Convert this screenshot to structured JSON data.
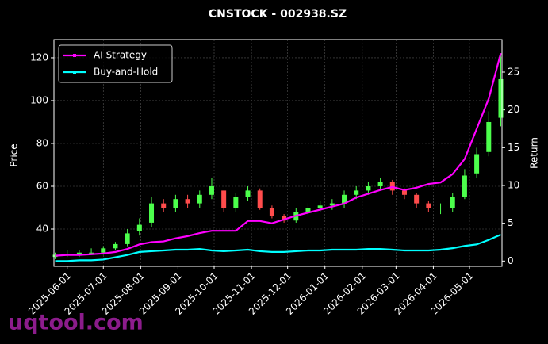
{
  "chart_data": {
    "type": "candlestick+line",
    "title": "CNSTOCK - 002938.SZ",
    "ylabel": "Price",
    "y2label": "Return",
    "xlim": [
      "2025-05-21",
      "2026-05-28"
    ],
    "xticks": [
      "2025-06-01",
      "2025-07-01",
      "2025-08-01",
      "2025-09-01",
      "2025-10-01",
      "2025-11-01",
      "2025-12-01",
      "2026-01-01",
      "2026-02-01",
      "2026-03-01",
      "2026-04-01",
      "2026-05-01"
    ],
    "ylim": [
      22.6,
      128.5
    ],
    "yticks": [
      40,
      60,
      80,
      100,
      120
    ],
    "y2lim": [
      -0.7,
      29.3
    ],
    "y2ticks": [
      0,
      5,
      10,
      15,
      20,
      25
    ],
    "grid": true,
    "legend": "upper left",
    "up_color": "#4cff4c",
    "down_color": "#ff4c4c",
    "x": [
      "2025-05-22",
      "2025-06-01",
      "2025-06-11",
      "2025-06-21",
      "2025-07-01",
      "2025-07-11",
      "2025-07-21",
      "2025-07-31",
      "2025-08-10",
      "2025-08-20",
      "2025-08-30",
      "2025-09-09",
      "2025-09-19",
      "2025-09-29",
      "2025-10-09",
      "2025-10-19",
      "2025-10-29",
      "2025-11-08",
      "2025-11-18",
      "2025-11-28",
      "2025-12-08",
      "2025-12-18",
      "2025-12-28",
      "2026-01-07",
      "2026-01-17",
      "2026-01-27",
      "2026-02-06",
      "2026-02-16",
      "2026-02-26",
      "2026-03-08",
      "2026-03-18",
      "2026-03-28",
      "2026-04-07",
      "2026-04-17",
      "2026-04-27",
      "2026-05-07",
      "2026-05-17",
      "2026-05-27"
    ],
    "open": [
      27,
      28,
      28,
      29,
      29,
      31,
      33,
      39,
      43,
      52,
      50,
      54,
      52,
      56,
      58,
      50,
      55,
      58,
      50,
      46,
      44,
      48,
      50,
      51,
      52,
      56,
      58,
      60,
      62,
      58,
      56,
      52,
      50,
      50,
      55,
      66,
      76,
      92
    ],
    "high": [
      29,
      30,
      30,
      31,
      32,
      34,
      40,
      45,
      55,
      54,
      56,
      56,
      58,
      64,
      58,
      57,
      60,
      59,
      51,
      47,
      50,
      52,
      53,
      54,
      58,
      60,
      62,
      64,
      63,
      59,
      57,
      53,
      52,
      57,
      68,
      78,
      95,
      122
    ],
    "low": [
      26,
      27,
      27,
      28,
      28,
      30,
      32,
      37,
      41,
      48,
      48,
      50,
      50,
      54,
      48,
      48,
      53,
      49,
      45,
      43,
      43,
      46,
      48,
      49,
      50,
      54,
      56,
      58,
      56,
      54,
      50,
      48,
      47,
      48,
      54,
      64,
      74,
      88
    ],
    "close": [
      28,
      28,
      29,
      29,
      31,
      33,
      38,
      42,
      52,
      50,
      54,
      52,
      56,
      60,
      50,
      55,
      58,
      50,
      46,
      44,
      48,
      50,
      51,
      52,
      56,
      58,
      60,
      62,
      58,
      56,
      52,
      50,
      50,
      55,
      65,
      75,
      90,
      110
    ],
    "series": [
      {
        "name": "AI Strategy",
        "color": "#ff00ff",
        "axis": "y2",
        "values": [
          0.7,
          0.8,
          0.8,
          0.9,
          1.0,
          1.2,
          1.6,
          2.2,
          2.5,
          2.6,
          3.0,
          3.3,
          3.7,
          4.0,
          4.0,
          4.0,
          5.3,
          5.3,
          5.0,
          5.5,
          6.0,
          6.4,
          6.8,
          7.2,
          7.6,
          8.4,
          8.9,
          9.4,
          9.8,
          9.4,
          9.7,
          10.2,
          10.4,
          11.5,
          13.5,
          17.5,
          21.5,
          27.5
        ]
      },
      {
        "name": "Buy-and-Hold",
        "color": "#00ffff",
        "axis": "y2",
        "values": [
          0,
          0,
          0.1,
          0.1,
          0.2,
          0.5,
          0.8,
          1.2,
          1.3,
          1.4,
          1.5,
          1.5,
          1.6,
          1.4,
          1.3,
          1.4,
          1.5,
          1.3,
          1.2,
          1.2,
          1.3,
          1.4,
          1.4,
          1.5,
          1.5,
          1.5,
          1.6,
          1.6,
          1.5,
          1.4,
          1.4,
          1.4,
          1.5,
          1.7,
          2.0,
          2.2,
          2.8,
          3.5
        ]
      }
    ],
    "watermark": "uqtool.com"
  }
}
